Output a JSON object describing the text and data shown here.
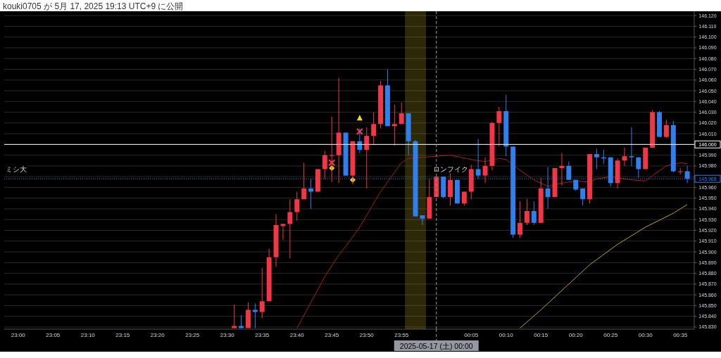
{
  "chart_data": {
    "type": "candlestick",
    "title": "kouki0705 が 5月 17, 2025 19:13 UTC+9 に公開",
    "xlim": [
      "2025-05-16T22:58",
      "2025-05-17T00:37"
    ],
    "ylim": [
      145.828,
      146.124
    ],
    "grid": "y",
    "xticks": [
      {
        "value": "2025-05-16T23:00",
        "label": "23:00"
      },
      {
        "value": "2025-05-16T23:05",
        "label": "23:05"
      },
      {
        "value": "2025-05-16T23:10",
        "label": "23:10"
      },
      {
        "value": "2025-05-16T23:15",
        "label": "23:15"
      },
      {
        "value": "2025-05-16T23:20",
        "label": "23:20"
      },
      {
        "value": "2025-05-16T23:25",
        "label": "23:25"
      },
      {
        "value": "2025-05-16T23:30",
        "label": "23:30"
      },
      {
        "value": "2025-05-16T23:35",
        "label": "23:35"
      },
      {
        "value": "2025-05-16T23:40",
        "label": "23:40"
      },
      {
        "value": "2025-05-16T23:45",
        "label": "23:45"
      },
      {
        "value": "2025-05-16T23:50",
        "label": "23:50"
      },
      {
        "value": "2025-05-16T23:55",
        "label": "23:55"
      },
      {
        "value": "2025-05-17T00:05",
        "label": "00:05"
      },
      {
        "value": "2025-05-17T00:10",
        "label": "00:10"
      },
      {
        "value": "2025-05-17T00:15",
        "label": "00:15"
      },
      {
        "value": "2025-05-17T00:20",
        "label": "00:20"
      },
      {
        "value": "2025-05-17T00:25",
        "label": "00:25"
      },
      {
        "value": "2025-05-17T00:30",
        "label": "00:30"
      },
      {
        "value": "2025-05-17T00:35",
        "label": "00:35"
      }
    ],
    "yticks": [
      {
        "value": 145.83,
        "label": "145.830"
      },
      {
        "value": 145.84,
        "label": "145.840"
      },
      {
        "value": 145.85,
        "label": "145.850"
      },
      {
        "value": 145.86,
        "label": "145.860"
      },
      {
        "value": 145.87,
        "label": "145.870"
      },
      {
        "value": 145.88,
        "label": "145.880"
      },
      {
        "value": 145.89,
        "label": "145.890"
      },
      {
        "value": 145.9,
        "label": "145.900"
      },
      {
        "value": 145.91,
        "label": "145.910"
      },
      {
        "value": 145.92,
        "label": "145.920"
      },
      {
        "value": 145.93,
        "label": "145.930"
      },
      {
        "value": 145.94,
        "label": "145.940"
      },
      {
        "value": 145.95,
        "label": "145.950"
      },
      {
        "value": 145.96,
        "label": "145.960"
      },
      {
        "value": 145.97,
        "label": null
      },
      {
        "value": 145.98,
        "label": "145.980"
      },
      {
        "value": 145.99,
        "label": "145.990"
      },
      {
        "value": 146.0,
        "label": null
      },
      {
        "value": 146.01,
        "label": "146.010"
      },
      {
        "value": 146.02,
        "label": "146.020"
      },
      {
        "value": 146.03,
        "label": "146.030"
      },
      {
        "value": 146.04,
        "label": "146.040"
      },
      {
        "value": 146.05,
        "label": "146.050"
      },
      {
        "value": 146.06,
        "label": "146.060"
      },
      {
        "value": 146.07,
        "label": "146.070"
      },
      {
        "value": 146.08,
        "label": "146.080"
      },
      {
        "value": 146.09,
        "label": "146.090"
      },
      {
        "value": 146.1,
        "label": "146.100"
      },
      {
        "value": 146.11,
        "label": "146.110"
      },
      {
        "value": 146.12,
        "label": "146.120"
      }
    ],
    "ref_lines": [
      {
        "axis": "y",
        "value": 146.0,
        "label": "146.000",
        "color": "#ffffff",
        "line_style": "solid"
      },
      {
        "axis": "y",
        "value": 145.968,
        "label": "145.968",
        "color": "#2f80ed",
        "line_style": "dotted"
      },
      {
        "axis": "x",
        "value": "2025-05-17T00:00",
        "label": "2025-05-17 (土) 00:00",
        "color": "#9598a1",
        "line_style": "dashed"
      }
    ],
    "bands": [
      {
        "axis": "x",
        "from": "2025-05-16T23:55:30",
        "to": "2025-05-16T23:58:30",
        "color": "#b5a320"
      }
    ],
    "annotations": [
      {
        "text": "ロンフイク",
        "x": "2025-05-17T00:02",
        "y": 145.973
      },
      "ミシ大"
    ],
    "series": [
      {
        "x": [
          "2025-05-16T23:31",
          "2025-05-16T23:32",
          "2025-05-16T23:33",
          "2025-05-16T23:34",
          "2025-05-16T23:35",
          "2025-05-16T23:36",
          "2025-05-16T23:37",
          "2025-05-16T23:38",
          "2025-05-16T23:39",
          "2025-05-16T23:40",
          "2025-05-16T23:41",
          "2025-05-16T23:42",
          "2025-05-16T23:43",
          "2025-05-16T23:44",
          "2025-05-16T23:45",
          "2025-05-16T23:46",
          "2025-05-16T23:47",
          "2025-05-16T23:48",
          "2025-05-16T23:49",
          "2025-05-16T23:50",
          "2025-05-16T23:51",
          "2025-05-16T23:52",
          "2025-05-16T23:53",
          "2025-05-16T23:54",
          "2025-05-16T23:55",
          "2025-05-16T23:56",
          "2025-05-16T23:57",
          "2025-05-16T23:58",
          "2025-05-16T23:59",
          "2025-05-17T00:00",
          "2025-05-17T00:01",
          "2025-05-17T00:02",
          "2025-05-17T00:03",
          "2025-05-17T00:04",
          "2025-05-17T00:05",
          "2025-05-17T00:06",
          "2025-05-17T00:07",
          "2025-05-17T00:08",
          "2025-05-17T00:09",
          "2025-05-17T00:10",
          "2025-05-17T00:11",
          "2025-05-17T00:12",
          "2025-05-17T00:13",
          "2025-05-17T00:14",
          "2025-05-17T00:15",
          "2025-05-17T00:16",
          "2025-05-17T00:17",
          "2025-05-17T00:18",
          "2025-05-17T00:19",
          "2025-05-17T00:20",
          "2025-05-17T00:21",
          "2025-05-17T00:22",
          "2025-05-17T00:23",
          "2025-05-17T00:24",
          "2025-05-17T00:25",
          "2025-05-17T00:26",
          "2025-05-17T00:27",
          "2025-05-17T00:28",
          "2025-05-17T00:29",
          "2025-05-17T00:30",
          "2025-05-17T00:31",
          "2025-05-17T00:32",
          "2025-05-17T00:33",
          "2025-05-17T00:34",
          "2025-05-17T00:35",
          "2025-05-17T00:36"
        ],
        "ohlc": [
          [
            145.829,
            145.851,
            145.829,
            145.831
          ],
          [
            145.831,
            145.841,
            145.829,
            145.829
          ],
          [
            145.829,
            145.853,
            145.829,
            145.846
          ],
          [
            145.846,
            145.852,
            145.829,
            145.844
          ],
          [
            145.844,
            145.885,
            145.838,
            145.854
          ],
          [
            145.854,
            145.903,
            145.854,
            145.895
          ],
          [
            145.895,
            145.935,
            145.886,
            145.925
          ],
          [
            145.924,
            145.926,
            145.911,
            145.926
          ],
          [
            145.926,
            145.949,
            145.894,
            145.937
          ],
          [
            145.937,
            145.956,
            145.929,
            145.949
          ],
          [
            145.949,
            145.983,
            145.949,
            145.959
          ],
          [
            145.959,
            145.968,
            145.94,
            145.956
          ],
          [
            145.956,
            145.977,
            145.956,
            145.977
          ],
          [
            145.977,
            145.994,
            145.968,
            145.99
          ],
          [
            145.99,
            146.026,
            145.965,
            145.99
          ],
          [
            145.99,
            146.062,
            145.964,
            146.011
          ],
          [
            146.011,
            146.011,
            145.971,
            145.971
          ],
          [
            145.971,
            146.003,
            145.963,
            146.003
          ],
          [
            146.003,
            146.015,
            145.992,
            145.995
          ],
          [
            145.995,
            146.016,
            145.959,
            146.008
          ],
          [
            146.008,
            146.03,
            146.0,
            146.019
          ],
          [
            146.019,
            146.059,
            146.015,
            146.055
          ],
          [
            146.055,
            146.07,
            146.017,
            146.017
          ],
          [
            146.017,
            146.037,
            145.999,
            146.019
          ],
          [
            146.019,
            146.039,
            146.019,
            146.029
          ],
          [
            146.029,
            146.029,
            145.99,
            146.003
          ],
          [
            146.003,
            146.004,
            145.933,
            145.933
          ],
          [
            145.934,
            145.934,
            145.925,
            145.931
          ],
          [
            145.931,
            145.968,
            145.931,
            145.951
          ],
          [
            145.951,
            145.97,
            145.951,
            145.97
          ],
          [
            145.97,
            145.97,
            145.95,
            145.951
          ],
          [
            145.951,
            145.973,
            145.943,
            145.967
          ],
          [
            145.967,
            145.967,
            145.945,
            145.945
          ],
          [
            145.945,
            145.956,
            145.943,
            145.956
          ],
          [
            145.956,
            145.981,
            145.949,
            145.977
          ],
          [
            145.977,
            146.005,
            145.968,
            145.971
          ],
          [
            145.971,
            145.988,
            145.964,
            145.98
          ],
          [
            145.98,
            146.021,
            145.976,
            146.02
          ],
          [
            146.02,
            146.035,
            145.998,
            146.031
          ],
          [
            146.031,
            146.046,
            145.989,
            145.998
          ],
          [
            145.998,
            145.998,
            145.913,
            145.916
          ],
          [
            145.916,
            145.947,
            145.913,
            145.927
          ],
          [
            145.927,
            145.949,
            145.925,
            145.938
          ],
          [
            145.938,
            145.947,
            145.925,
            145.927
          ],
          [
            145.927,
            145.969,
            145.927,
            145.959
          ],
          [
            145.959,
            145.979,
            145.94,
            145.951
          ],
          [
            145.951,
            145.978,
            145.951,
            145.978
          ],
          [
            145.978,
            145.992,
            145.962,
            145.98
          ],
          [
            145.98,
            145.984,
            145.967,
            145.967
          ],
          [
            145.967,
            145.967,
            145.957,
            145.958
          ],
          [
            145.959,
            145.959,
            145.943,
            145.949
          ],
          [
            145.949,
            145.991,
            145.945,
            145.991
          ],
          [
            145.991,
            145.996,
            145.977,
            145.988
          ],
          [
            145.988,
            145.995,
            145.982,
            145.987
          ],
          [
            145.988,
            145.988,
            145.961,
            145.964
          ],
          [
            145.964,
            145.987,
            145.959,
            145.985
          ],
          [
            145.985,
            145.997,
            145.98,
            145.989
          ],
          [
            145.989,
            146.016,
            145.98,
            145.988
          ],
          [
            145.988,
            145.988,
            145.969,
            145.977
          ],
          [
            145.977,
            145.997,
            145.977,
            145.997
          ],
          [
            145.997,
            146.032,
            145.997,
            146.03
          ],
          [
            146.03,
            146.031,
            146.007,
            146.007
          ],
          [
            146.007,
            146.023,
            146.006,
            146.018
          ],
          [
            146.018,
            146.022,
            145.974,
            145.975
          ],
          [
            145.975,
            145.978,
            145.972,
            145.975
          ],
          [
            145.975,
            145.98,
            145.964,
            145.968
          ]
        ],
        "colors": [
          "#f23645",
          "#2f80ed",
          "#f23645",
          "#2f80ed",
          "#f23645",
          "#f23645",
          "#f23645",
          "#f23645",
          "#f23645",
          "#f23645",
          "#f23645",
          "#2f80ed",
          "#f23645",
          "#f23645",
          "#f23645",
          "#f23645",
          "#2f80ed",
          "#f23645",
          "#2f80ed",
          "#f23645",
          "#f23645",
          "#f23645",
          "#2f80ed",
          "#f23645",
          "#f23645",
          "#2f80ed",
          "#2f80ed",
          "#2f80ed",
          "#f23645",
          "#f23645",
          "#2f80ed",
          "#f23645",
          "#2f80ed",
          "#f23645",
          "#f23645",
          "#2f80ed",
          "#f23645",
          "#f23645",
          "#f23645",
          "#2f80ed",
          "#2f80ed",
          "#f23645",
          "#f23645",
          "#2f80ed",
          "#f23645",
          "#2f80ed",
          "#f23645",
          "#f23645",
          "#2f80ed",
          "#2f80ed",
          "#2f80ed",
          "#f23645",
          "#2f80ed",
          "#2f80ed",
          "#2f80ed",
          "#f23645",
          "#f23645",
          "#2f80ed",
          "#2f80ed",
          "#f23645",
          "#f23645",
          "#2f80ed",
          "#f23645",
          "#2f80ed",
          "#f23645",
          "#2f80ed"
        ]
      },
      {
        "type": "line",
        "color": "#a31f2a",
        "x": [
          "2025-05-16T23:40",
          "2025-05-16T23:44",
          "2025-05-16T23:46",
          "2025-05-16T23:47",
          "2025-05-16T23:49",
          "2025-05-16T23:52",
          "2025-05-16T23:55",
          "2025-05-16T23:56",
          "2025-05-16T23:58",
          "2025-05-17T00:00",
          "2025-05-17T00:02",
          "2025-05-17T00:05",
          "2025-05-17T00:07",
          "2025-05-17T00:09",
          "2025-05-17T00:10",
          "2025-05-17T00:12",
          "2025-05-17T00:14",
          "2025-05-17T00:16",
          "2025-05-17T00:18",
          "2025-05-17T00:20",
          "2025-05-17T00:22",
          "2025-05-17T00:23",
          "2025-05-17T00:25",
          "2025-05-17T00:27",
          "2025-05-17T00:28",
          "2025-05-17T00:30",
          "2025-05-17T00:31",
          "2025-05-17T00:33",
          "2025-05-17T00:35",
          "2025-05-17T00:36"
        ],
        "values": [
          145.829,
          145.877,
          145.897,
          145.905,
          145.923,
          145.956,
          145.983,
          145.987,
          145.988,
          145.989,
          145.99,
          145.986,
          145.984,
          145.987,
          145.986,
          145.976,
          145.967,
          145.961,
          145.964,
          145.966,
          145.965,
          145.968,
          145.97,
          145.968,
          145.967,
          145.966,
          145.971,
          145.98,
          145.983,
          145.982
        ]
      },
      {
        "type": "line",
        "color": "#b5a320",
        "x": [
          "2025-05-17T00:12",
          "2025-05-17T00:15",
          "2025-05-17T00:19",
          "2025-05-17T00:22",
          "2025-05-17T00:26",
          "2025-05-17T00:30",
          "2025-05-17T00:34",
          "2025-05-17T00:36"
        ],
        "values": [
          145.829,
          145.846,
          145.87,
          145.888,
          145.907,
          145.923,
          145.936,
          145.944
        ]
      },
      {
        "type": "scatter",
        "marker": "triangle",
        "color": "#f5d90a",
        "x": [
          "2025-05-16T23:49"
        ],
        "values": [
          146.025
        ]
      },
      {
        "type": "scatter",
        "marker": "diamond",
        "color": "#f5d90a",
        "x": [
          "2025-05-16T23:45",
          "2025-05-16T23:48"
        ],
        "values": [
          145.978,
          145.967
        ]
      },
      {
        "type": "scatter",
        "marker": "cross",
        "color": "#f23645",
        "x": [
          "2025-05-16T23:45",
          "2025-05-16T23:49"
        ],
        "values": [
          145.983,
          146.012
        ]
      }
    ]
  }
}
